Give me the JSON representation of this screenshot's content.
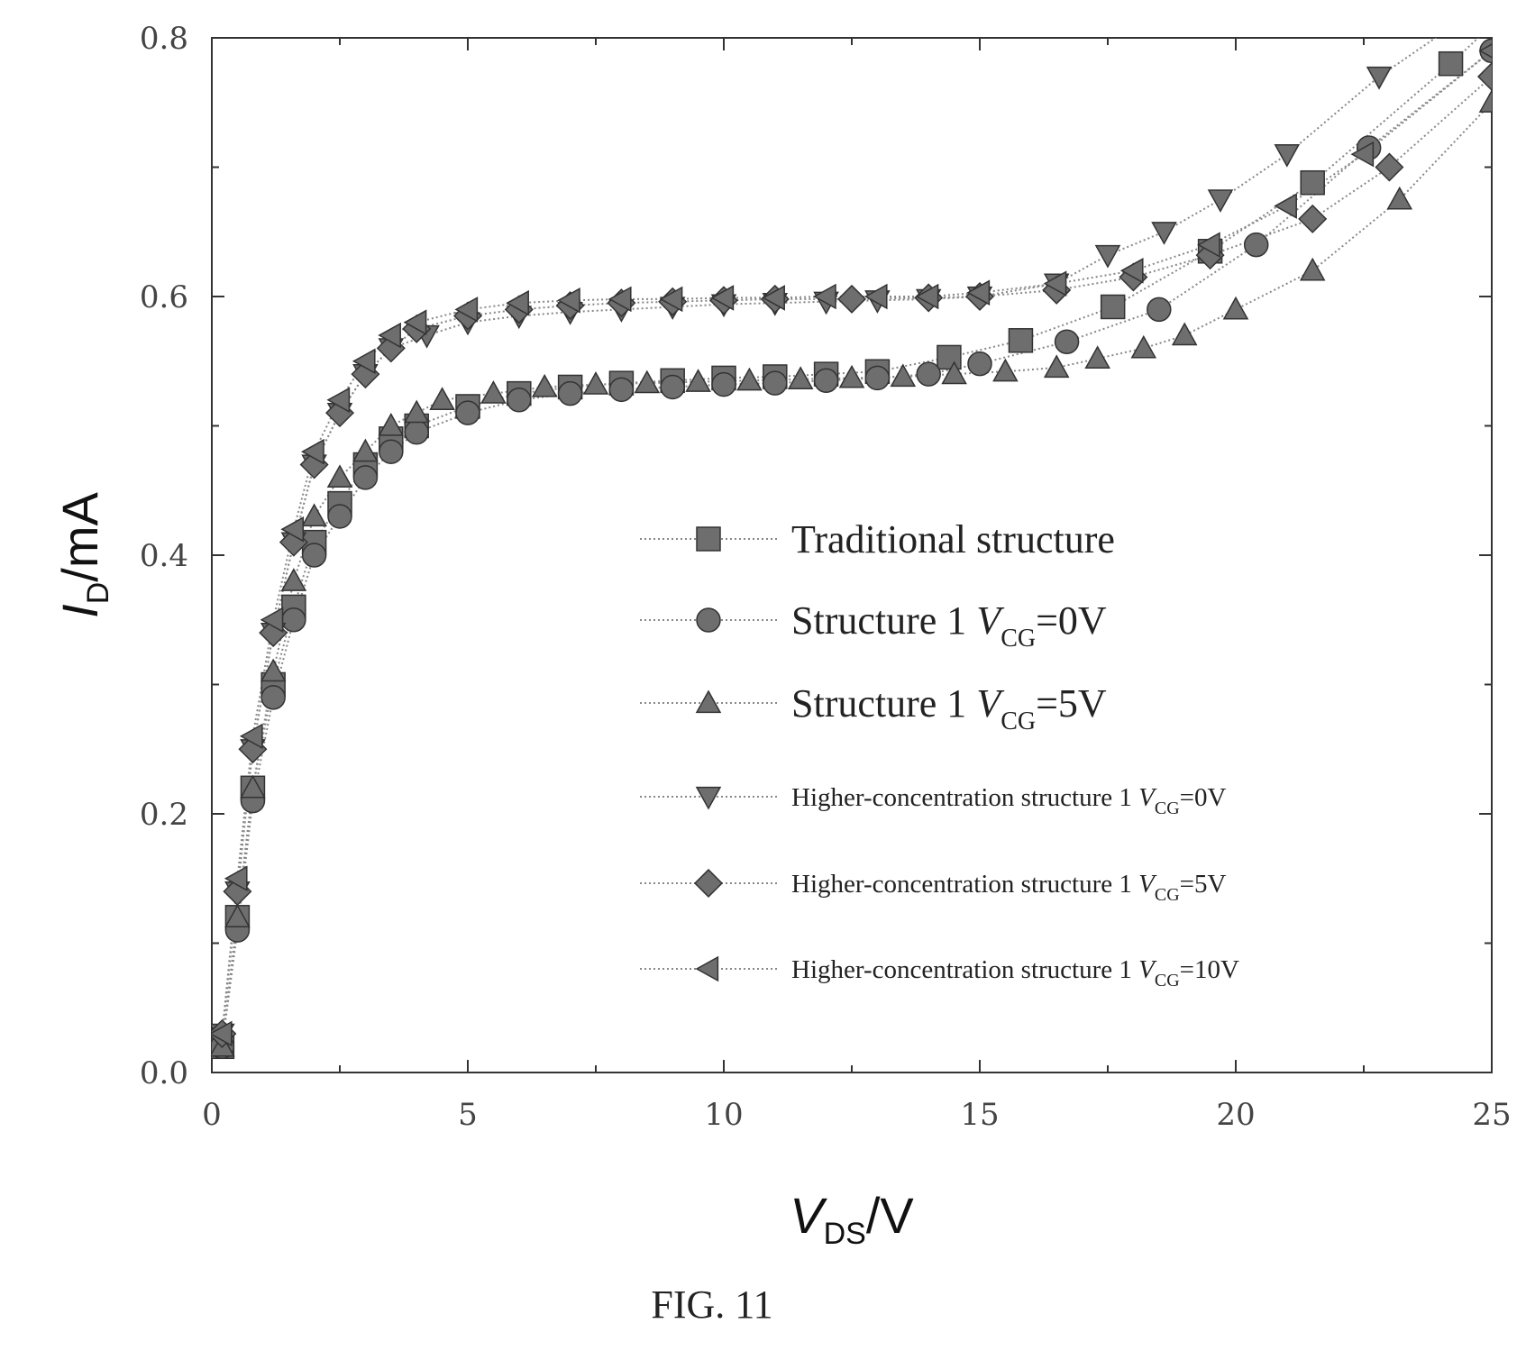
{
  "chart_data": {
    "type": "line",
    "x_axis": {
      "label_main": "V",
      "label_sub": "DS",
      "label_unit": "/V",
      "range": [
        0,
        25
      ],
      "ticks": [
        "0",
        "5",
        "10",
        "15",
        "20",
        "25"
      ],
      "tick_values": [
        0,
        5,
        10,
        15,
        20,
        25
      ]
    },
    "y_axis": {
      "label_main": "I",
      "label_sub": "D",
      "label_unit": "/mA",
      "range": [
        0,
        0.8
      ],
      "ticks": [
        "0.0",
        "0.2",
        "0.4",
        "0.6",
        "0.8"
      ],
      "tick_values": [
        0,
        0.2,
        0.4,
        0.6,
        0.8
      ]
    },
    "grid": false,
    "legend_position": "center-right",
    "series": [
      {
        "name_main": "Traditional structure",
        "name_sub": "",
        "name_tail": "",
        "marker": "square",
        "size": "big",
        "x": [
          0.2,
          0.5,
          0.8,
          1.2,
          1.6,
          2.0,
          2.5,
          3.0,
          3.5,
          4.0,
          5.0,
          6.0,
          7.0,
          8.0,
          9.0,
          10.0,
          11.0,
          12.0,
          13.0,
          14.4,
          15.8,
          17.6,
          19.5,
          21.5,
          24.2,
          25.0
        ],
        "y": [
          0.02,
          0.12,
          0.22,
          0.3,
          0.36,
          0.41,
          0.44,
          0.47,
          0.49,
          0.5,
          0.515,
          0.525,
          0.53,
          0.533,
          0.535,
          0.537,
          0.538,
          0.54,
          0.542,
          0.553,
          0.566,
          0.592,
          0.635,
          0.688,
          0.78,
          0.81
        ]
      },
      {
        "name_main": "Structure 1 ",
        "name_sub": "CG",
        "name_tail": "=0V",
        "marker": "circle",
        "size": "big",
        "x": [
          0.2,
          0.5,
          0.8,
          1.2,
          1.6,
          2.0,
          2.5,
          3.0,
          3.5,
          4.0,
          5.0,
          6.0,
          7.0,
          8.0,
          9.0,
          10.0,
          11.0,
          12.0,
          13.0,
          14.0,
          15.0,
          16.7,
          18.5,
          20.4,
          22.6,
          25.0
        ],
        "y": [
          0.02,
          0.11,
          0.21,
          0.29,
          0.35,
          0.4,
          0.43,
          0.46,
          0.48,
          0.495,
          0.51,
          0.52,
          0.525,
          0.528,
          0.53,
          0.532,
          0.533,
          0.535,
          0.537,
          0.54,
          0.548,
          0.565,
          0.59,
          0.64,
          0.715,
          0.79
        ]
      },
      {
        "name_main": "Structure 1 ",
        "name_sub": "CG",
        "name_tail": "=5V",
        "marker": "triangle-up",
        "size": "big",
        "x": [
          0.2,
          0.5,
          0.8,
          1.2,
          1.6,
          2.0,
          2.5,
          3.0,
          3.5,
          4.0,
          4.5,
          5.5,
          6.5,
          7.5,
          8.5,
          9.5,
          10.5,
          11.5,
          12.5,
          13.5,
          14.5,
          15.5,
          16.5,
          17.3,
          18.2,
          19.0,
          20.0,
          21.5,
          23.2,
          25.0
        ],
        "y": [
          0.02,
          0.12,
          0.22,
          0.31,
          0.38,
          0.43,
          0.46,
          0.48,
          0.5,
          0.51,
          0.52,
          0.525,
          0.53,
          0.532,
          0.533,
          0.534,
          0.535,
          0.536,
          0.537,
          0.538,
          0.54,
          0.542,
          0.545,
          0.552,
          0.56,
          0.57,
          0.59,
          0.62,
          0.675,
          0.75
        ]
      },
      {
        "name_main": "Higher-concentration structure 1 ",
        "name_sub": "CG",
        "name_tail": "=0V",
        "marker": "triangle-down",
        "size": "small",
        "x": [
          0.2,
          0.5,
          0.8,
          1.2,
          1.6,
          2.0,
          2.5,
          3.0,
          3.5,
          4.2,
          5.0,
          6.0,
          7.0,
          8.0,
          9.0,
          10.0,
          11.0,
          12.0,
          13.0,
          14.0,
          15.0,
          16.5,
          17.5,
          18.6,
          19.7,
          21.0,
          22.8,
          25.0
        ],
        "y": [
          0.03,
          0.14,
          0.25,
          0.34,
          0.41,
          0.47,
          0.51,
          0.54,
          0.56,
          0.57,
          0.58,
          0.585,
          0.588,
          0.59,
          0.592,
          0.594,
          0.595,
          0.596,
          0.597,
          0.598,
          0.6,
          0.61,
          0.632,
          0.65,
          0.675,
          0.71,
          0.77,
          0.83
        ]
      },
      {
        "name_main": "Higher-concentration structure 1 ",
        "name_sub": "CG",
        "name_tail": "=5V",
        "marker": "diamond",
        "size": "small",
        "x": [
          0.2,
          0.5,
          0.8,
          1.2,
          1.6,
          2.0,
          2.5,
          3.0,
          3.5,
          4.0,
          5.0,
          6.0,
          7.0,
          8.0,
          9.0,
          10.0,
          11.0,
          12.5,
          14.0,
          15.0,
          16.5,
          18.0,
          19.5,
          21.5,
          23.0,
          25.0
        ],
        "y": [
          0.03,
          0.14,
          0.25,
          0.34,
          0.41,
          0.47,
          0.51,
          0.54,
          0.56,
          0.575,
          0.585,
          0.59,
          0.593,
          0.595,
          0.596,
          0.597,
          0.598,
          0.598,
          0.599,
          0.6,
          0.605,
          0.615,
          0.632,
          0.66,
          0.7,
          0.77
        ]
      },
      {
        "name_main": "Higher-concentration structure 1 ",
        "name_sub": "CG",
        "name_tail": "=10V",
        "marker": "triangle-left",
        "size": "small",
        "x": [
          0.2,
          0.5,
          0.8,
          1.2,
          1.6,
          2.0,
          2.5,
          3.0,
          3.5,
          4.0,
          5.0,
          6.0,
          7.0,
          8.0,
          9.0,
          10.0,
          11.0,
          12.0,
          13.0,
          14.0,
          15.0,
          16.5,
          18.0,
          19.5,
          21.0,
          22.5,
          25.0
        ],
        "y": [
          0.03,
          0.15,
          0.26,
          0.35,
          0.42,
          0.48,
          0.52,
          0.55,
          0.57,
          0.58,
          0.59,
          0.595,
          0.597,
          0.598,
          0.598,
          0.599,
          0.599,
          0.6,
          0.6,
          0.6,
          0.603,
          0.61,
          0.62,
          0.64,
          0.67,
          0.71,
          0.79
        ]
      }
    ]
  },
  "caption": "FIG. 11",
  "colors": {
    "marker_fill": "#6e6e6e",
    "marker_stroke": "#333333",
    "curve": "#888888",
    "axis": "#333333"
  }
}
